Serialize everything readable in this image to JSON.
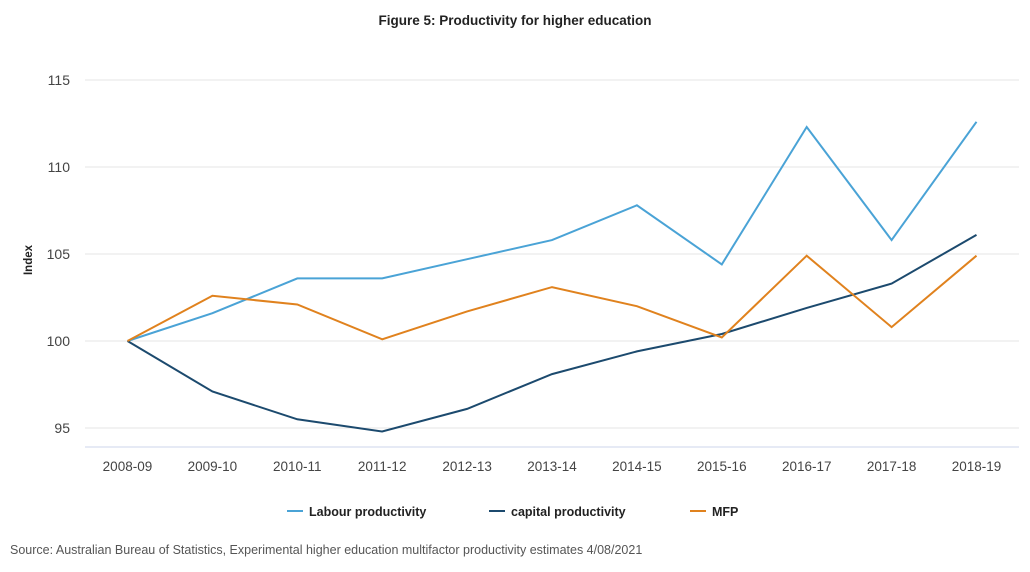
{
  "chart_data": {
    "type": "line",
    "title": "Figure 5: Productivity for higher education",
    "xlabel": "",
    "ylabel": "Index",
    "ylim": [
      93.5,
      115
    ],
    "yticks": [
      95,
      100,
      105,
      110,
      115
    ],
    "grid": true,
    "legend_position": "bottom-center",
    "categories": [
      "2008-09",
      "2009-10",
      "2010-11",
      "2011-12",
      "2012-13",
      "2013-14",
      "2014-15",
      "2015-16",
      "2016-17",
      "2017-18",
      "2018-19"
    ],
    "series": [
      {
        "name": "Labour productivity",
        "color": "#4aa3d6",
        "values": [
          100,
          101.6,
          103.6,
          103.6,
          104.7,
          105.8,
          107.8,
          104.4,
          112.3,
          105.8,
          112.6
        ]
      },
      {
        "name": "capital productivity",
        "color": "#1c4a6e",
        "values": [
          100,
          97.1,
          95.5,
          94.8,
          96.1,
          98.1,
          99.4,
          100.4,
          101.9,
          103.3,
          106.1
        ]
      },
      {
        "name": "MFP",
        "color": "#e0821e",
        "values": [
          100,
          102.6,
          102.1,
          100.1,
          101.7,
          103.1,
          102.0,
          100.2,
          104.9,
          100.8,
          104.9
        ]
      }
    ],
    "source": "Source: Australian Bureau of Statistics, Experimental higher education multifactor productivity estimates 4/08/2021"
  }
}
